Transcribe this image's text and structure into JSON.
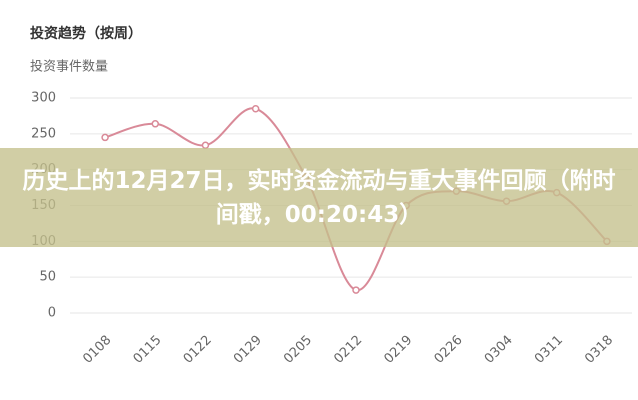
{
  "chart_data": {
    "type": "line",
    "title": "投资趋势（按周）",
    "y_label": "投资事件数量",
    "categories": [
      "0108",
      "0115",
      "0122",
      "0129",
      "0205",
      "0212",
      "0219",
      "0226",
      "0304",
      "0311",
      "0318"
    ],
    "values": [
      245,
      264,
      234,
      285,
      190,
      32,
      150,
      170,
      156,
      168,
      100
    ],
    "color": "#d98a98",
    "ylim": [
      0,
      300
    ],
    "yticks": [
      0,
      50,
      100,
      150,
      200,
      250,
      300
    ],
    "grid": true
  },
  "overlay": {
    "headline": "历史上的12月27日，实时资金流动与重大事件回顾（附时间戳，00:20:43）"
  }
}
